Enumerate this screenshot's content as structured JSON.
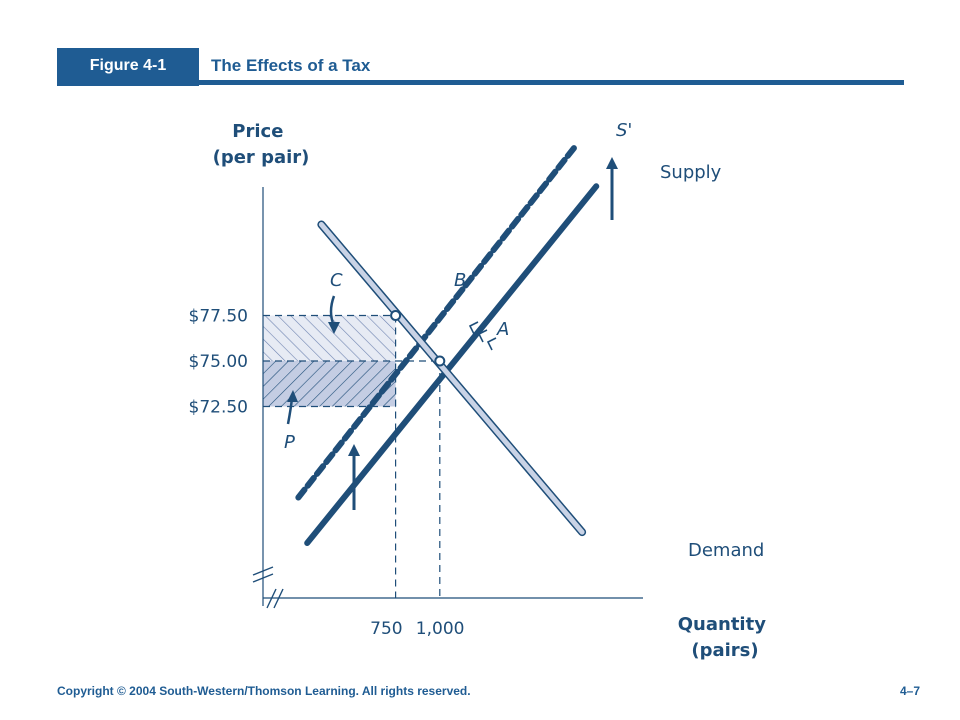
{
  "header": {
    "figure_label": "Figure 4-1",
    "title": "The Effects of a Tax"
  },
  "footer": {
    "copyright": "Copyright © 2004 South-Western/Thomson Learning. All rights reserved.",
    "page": "4–7"
  },
  "colors": {
    "brand": "#1f5c93",
    "curve": "#1f4e79",
    "demand_fill": "#c9d3e6",
    "area_c": "#e7ebf4",
    "area_p": "#c4cde3"
  },
  "chart_data": {
    "type": "line",
    "ylabel": "Price\n(per pair)",
    "xlabel": "Quantity\n(pairs)",
    "y_ticks": [
      {
        "value": 77.5,
        "label": "$77.50"
      },
      {
        "value": 75.0,
        "label": "$75.00"
      },
      {
        "value": 72.5,
        "label": "$72.50"
      }
    ],
    "x_ticks": [
      {
        "value": 750,
        "label": "750"
      },
      {
        "value": 1000,
        "label": "1,000"
      }
    ],
    "axis_breaks": true,
    "series": [
      {
        "name": "Supply",
        "style": "solid",
        "points": [
          [
            250,
            65.0
          ],
          [
            1885,
            84.6
          ]
        ]
      },
      {
        "name": "S'",
        "style": "dashed",
        "points": [
          [
            200,
            67.5
          ],
          [
            1775,
            86.9
          ]
        ]
      },
      {
        "name": "Demand",
        "style": "outlined",
        "points": [
          [
            330,
            82.5
          ],
          [
            1805,
            65.6
          ]
        ]
      }
    ],
    "points": [
      {
        "label": "A",
        "x": 1000,
        "y": 75.0
      },
      {
        "label": "B",
        "x": 750,
        "y": 77.5
      }
    ],
    "areas": [
      {
        "label": "C",
        "x_range": [
          0,
          750
        ],
        "y_range": [
          75.0,
          77.5
        ]
      },
      {
        "label": "P",
        "x_range": [
          0,
          750
        ],
        "y_range": [
          72.5,
          75.0
        ]
      }
    ]
  }
}
